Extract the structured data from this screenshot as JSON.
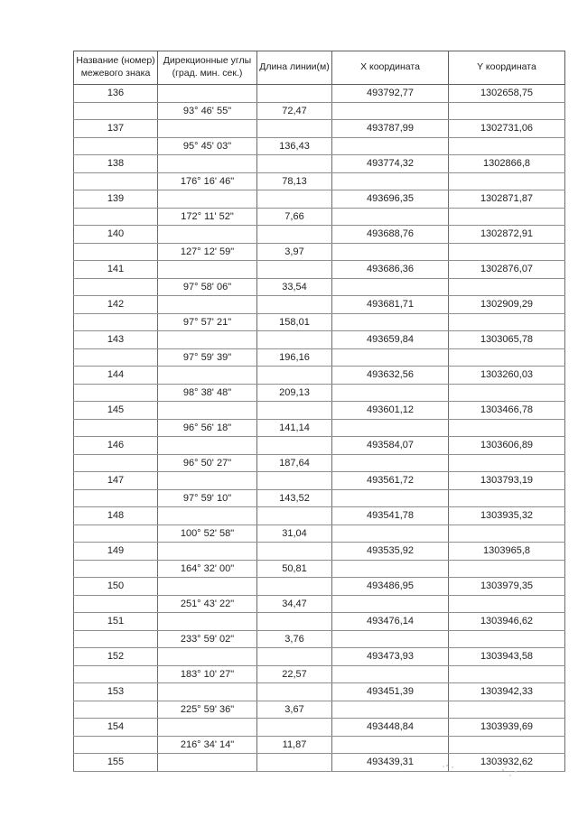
{
  "table": {
    "headers": [
      "Название (номер)\nмежевого знака",
      "Дирекционные углы\n(град. мин. сек.)",
      "Длина линии(м)",
      "X координата",
      "Y координата"
    ],
    "rows": [
      [
        "136",
        "",
        "",
        "493792,77",
        "1302658,75"
      ],
      [
        "",
        "93° 46' 55\"",
        "72,47",
        "",
        ""
      ],
      [
        "137",
        "",
        "",
        "493787,99",
        "1302731,06"
      ],
      [
        "",
        "95° 45' 03\"",
        "136,43",
        "",
        ""
      ],
      [
        "138",
        "",
        "",
        "493774,32",
        "1302866,8"
      ],
      [
        "",
        "176° 16' 46\"",
        "78,13",
        "",
        ""
      ],
      [
        "139",
        "",
        "",
        "493696,35",
        "1302871,87"
      ],
      [
        "",
        "172° 11' 52\"",
        "7,66",
        "",
        ""
      ],
      [
        "140",
        "",
        "",
        "493688,76",
        "1302872,91"
      ],
      [
        "",
        "127° 12' 59\"",
        "3,97",
        "",
        ""
      ],
      [
        "141",
        "",
        "",
        "493686,36",
        "1302876,07"
      ],
      [
        "",
        "97° 58' 06\"",
        "33,54",
        "",
        ""
      ],
      [
        "142",
        "",
        "",
        "493681,71",
        "1302909,29"
      ],
      [
        "",
        "97° 57' 21\"",
        "158,01",
        "",
        ""
      ],
      [
        "143",
        "",
        "",
        "493659,84",
        "1303065,78"
      ],
      [
        "",
        "97° 59' 39\"",
        "196,16",
        "",
        ""
      ],
      [
        "144",
        "",
        "",
        "493632,56",
        "1303260,03"
      ],
      [
        "",
        "98° 38' 48\"",
        "209,13",
        "",
        ""
      ],
      [
        "145",
        "",
        "",
        "493601,12",
        "1303466,78"
      ],
      [
        "",
        "96° 56' 18\"",
        "141,14",
        "",
        ""
      ],
      [
        "146",
        "",
        "",
        "493584,07",
        "1303606,89"
      ],
      [
        "",
        "96° 50' 27\"",
        "187,64",
        "",
        ""
      ],
      [
        "147",
        "",
        "",
        "493561,72",
        "1303793,19"
      ],
      [
        "",
        "97° 59' 10\"",
        "143,52",
        "",
        ""
      ],
      [
        "148",
        "",
        "",
        "493541,78",
        "1303935,32"
      ],
      [
        "",
        "100° 52' 58\"",
        "31,04",
        "",
        ""
      ],
      [
        "149",
        "",
        "",
        "493535,92",
        "1303965,8"
      ],
      [
        "",
        "164° 32' 00\"",
        "50,81",
        "",
        ""
      ],
      [
        "150",
        "",
        "",
        "493486,95",
        "1303979,35"
      ],
      [
        "",
        "251° 43' 22\"",
        "34,47",
        "",
        ""
      ],
      [
        "151",
        "",
        "",
        "493476,14",
        "1303946,62"
      ],
      [
        "",
        "233° 59' 02\"",
        "3,76",
        "",
        ""
      ],
      [
        "152",
        "",
        "",
        "493473,93",
        "1303943,58"
      ],
      [
        "",
        "183° 10' 27\"",
        "22,57",
        "",
        ""
      ],
      [
        "153",
        "",
        "",
        "493451,39",
        "1303942,33"
      ],
      [
        "",
        "225° 59' 36\"",
        "3,67",
        "",
        ""
      ],
      [
        "154",
        "",
        "",
        "493448,84",
        "1303939,69"
      ],
      [
        "",
        "216° 34' 14\"",
        "11,87",
        "",
        ""
      ],
      [
        "155",
        "",
        "",
        "493439,31",
        "1303932,62"
      ]
    ]
  }
}
